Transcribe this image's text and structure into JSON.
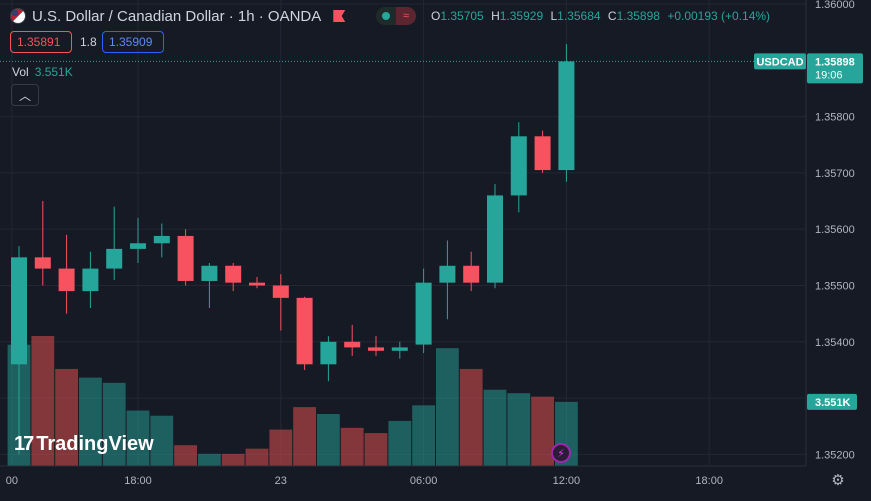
{
  "header": {
    "title": "U.S. Dollar / Canadian Dollar · 1h · OANDA",
    "ohlc": [
      {
        "k": "O",
        "v": "1.35705"
      },
      {
        "k": "H",
        "v": "1.35929"
      },
      {
        "k": "L",
        "v": "1.35684"
      },
      {
        "k": "C",
        "v": "1.35898"
      }
    ],
    "change": "+0.00193 (+0.14%)"
  },
  "trade": {
    "sell": "1.35891",
    "spread": "1.8",
    "buy": "1.35909"
  },
  "volume": {
    "label": "Vol",
    "value": "3.551K"
  },
  "branding": {
    "logo_text": "TradingView"
  },
  "colors": {
    "up": "#26a69a",
    "down": "#f7525f",
    "background": "#161a25"
  },
  "icons": [
    "flag-icon",
    "flag-marker-icon",
    "collapse-chevron-icon",
    "lightning-icon",
    "settings-icon"
  ],
  "chart_data": {
    "type": "candlestick",
    "symbol": "USDCAD",
    "timeframe": "1h",
    "ylim": [
      1.3519,
      1.36
    ],
    "y_ticks": [
      "1.35200",
      "1.35300",
      "1.35400",
      "1.35500",
      "1.35600",
      "1.35700",
      "1.35800",
      "1.36000"
    ],
    "x_ticks": [
      {
        "label": "00",
        "bar": -0.3
      },
      {
        "label": "18:00",
        "bar": 5
      },
      {
        "label": "23",
        "bar": 11
      },
      {
        "label": "06:00",
        "bar": 17
      },
      {
        "label": "12:00",
        "bar": 23
      },
      {
        "label": "18:00",
        "bar": 29
      }
    ],
    "candles": [
      {
        "o": 1.3536,
        "h": 1.3557,
        "l": 1.352,
        "c": 1.3555
      },
      {
        "o": 1.3555,
        "h": 1.3565,
        "l": 1.355,
        "c": 1.3553
      },
      {
        "o": 1.3553,
        "h": 1.3559,
        "l": 1.3545,
        "c": 1.3549
      },
      {
        "o": 1.3549,
        "h": 1.3556,
        "l": 1.3546,
        "c": 1.3553
      },
      {
        "o": 1.3553,
        "h": 1.3564,
        "l": 1.3551,
        "c": 1.35565
      },
      {
        "o": 1.35565,
        "h": 1.3562,
        "l": 1.3554,
        "c": 1.35575
      },
      {
        "o": 1.35575,
        "h": 1.3561,
        "l": 1.3555,
        "c": 1.35588
      },
      {
        "o": 1.35588,
        "h": 1.356,
        "l": 1.355,
        "c": 1.35508
      },
      {
        "o": 1.35508,
        "h": 1.3554,
        "l": 1.3546,
        "c": 1.35535
      },
      {
        "o": 1.35535,
        "h": 1.3554,
        "l": 1.3549,
        "c": 1.35505
      },
      {
        "o": 1.35505,
        "h": 1.35515,
        "l": 1.35495,
        "c": 1.355
      },
      {
        "o": 1.355,
        "h": 1.3552,
        "l": 1.3542,
        "c": 1.35478
      },
      {
        "o": 1.35478,
        "h": 1.3548,
        "l": 1.3535,
        "c": 1.3536
      },
      {
        "o": 1.3536,
        "h": 1.3541,
        "l": 1.3533,
        "c": 1.354
      },
      {
        "o": 1.354,
        "h": 1.3543,
        "l": 1.35375,
        "c": 1.3539
      },
      {
        "o": 1.3539,
        "h": 1.3541,
        "l": 1.35375,
        "c": 1.35384
      },
      {
        "o": 1.35384,
        "h": 1.354,
        "l": 1.3537,
        "c": 1.3539
      },
      {
        "o": 1.35395,
        "h": 1.3553,
        "l": 1.3538,
        "c": 1.35505
      },
      {
        "o": 1.35505,
        "h": 1.3558,
        "l": 1.3544,
        "c": 1.35535
      },
      {
        "o": 1.35535,
        "h": 1.3556,
        "l": 1.3549,
        "c": 1.35505
      },
      {
        "o": 1.35505,
        "h": 1.3568,
        "l": 1.35495,
        "c": 1.3566
      },
      {
        "o": 1.3566,
        "h": 1.3579,
        "l": 1.3563,
        "c": 1.35765
      },
      {
        "o": 1.35765,
        "h": 1.35775,
        "l": 1.357,
        "c": 1.35705
      },
      {
        "o": 1.35705,
        "h": 1.35929,
        "l": 1.35684,
        "c": 1.35898
      }
    ],
    "volume": [
      350,
      375,
      280,
      255,
      240,
      160,
      145,
      60,
      35,
      35,
      50,
      105,
      170,
      150,
      110,
      95,
      130,
      175,
      340,
      280,
      220,
      210,
      200,
      185
    ],
    "volume_max": 375,
    "last_price_label": {
      "symbol": "USDCAD",
      "price": "1.35898",
      "countdown": "19:06"
    },
    "volume_label": "3.551K"
  }
}
